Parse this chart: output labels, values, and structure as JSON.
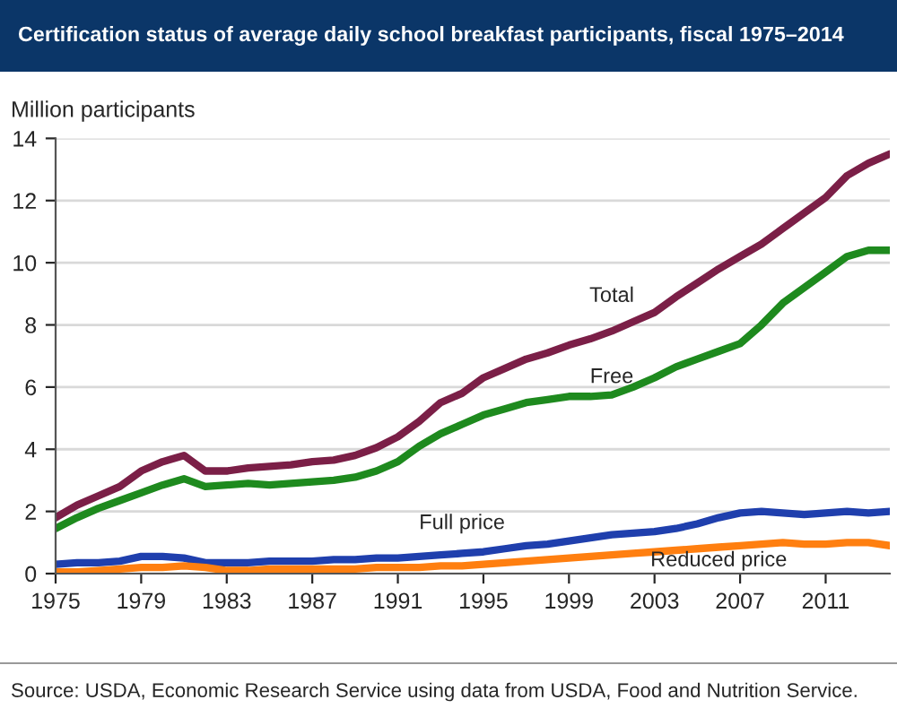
{
  "chart_data": {
    "type": "line",
    "title": "Certification status of average daily school breakfast participants, fiscal 1975–2014",
    "ylabel": "Million participants",
    "x": [
      1975,
      1976,
      1977,
      1978,
      1979,
      1980,
      1981,
      1982,
      1983,
      1984,
      1985,
      1986,
      1987,
      1988,
      1989,
      1990,
      1991,
      1992,
      1993,
      1994,
      1995,
      1996,
      1997,
      1998,
      1999,
      2000,
      2001,
      2002,
      2003,
      2004,
      2005,
      2006,
      2007,
      2008,
      2009,
      2010,
      2011,
      2012,
      2013,
      2014
    ],
    "series": [
      {
        "name": "Total",
        "color": "#7b1f47",
        "values": [
          1.8,
          2.2,
          2.5,
          2.8,
          3.3,
          3.6,
          3.8,
          3.3,
          3.3,
          3.4,
          3.45,
          3.5,
          3.6,
          3.65,
          3.8,
          4.05,
          4.4,
          4.9,
          5.5,
          5.8,
          6.3,
          6.6,
          6.9,
          7.1,
          7.35,
          7.55,
          7.8,
          8.1,
          8.4,
          8.9,
          9.35,
          9.8,
          10.2,
          10.6,
          11.1,
          11.6,
          12.1,
          12.8,
          13.2,
          13.5
        ]
      },
      {
        "name": "Free",
        "color": "#1e8a1e",
        "values": [
          1.45,
          1.8,
          2.1,
          2.35,
          2.6,
          2.85,
          3.05,
          2.8,
          2.85,
          2.9,
          2.85,
          2.9,
          2.95,
          3.0,
          3.1,
          3.3,
          3.6,
          4.1,
          4.5,
          4.8,
          5.1,
          5.3,
          5.5,
          5.6,
          5.7,
          5.7,
          5.75,
          6.0,
          6.3,
          6.65,
          6.9,
          7.15,
          7.4,
          8.0,
          8.7,
          9.2,
          9.7,
          10.2,
          10.4,
          10.4
        ]
      },
      {
        "name": "Full price",
        "color": "#1f3fad",
        "values": [
          0.3,
          0.35,
          0.35,
          0.4,
          0.55,
          0.55,
          0.5,
          0.35,
          0.35,
          0.35,
          0.4,
          0.4,
          0.4,
          0.45,
          0.45,
          0.5,
          0.5,
          0.55,
          0.6,
          0.65,
          0.7,
          0.8,
          0.9,
          0.95,
          1.05,
          1.15,
          1.25,
          1.3,
          1.35,
          1.45,
          1.6,
          1.8,
          1.95,
          2.0,
          1.95,
          1.9,
          1.95,
          2.0,
          1.95,
          2.0
        ]
      },
      {
        "name": "Reduced price",
        "color": "#ff7f10",
        "values": [
          0.05,
          0.05,
          0.1,
          0.15,
          0.2,
          0.2,
          0.25,
          0.2,
          0.1,
          0.1,
          0.15,
          0.15,
          0.15,
          0.15,
          0.15,
          0.2,
          0.2,
          0.2,
          0.25,
          0.25,
          0.3,
          0.35,
          0.4,
          0.45,
          0.5,
          0.55,
          0.6,
          0.65,
          0.7,
          0.75,
          0.8,
          0.85,
          0.9,
          0.95,
          1.0,
          0.95,
          0.95,
          1.0,
          1.0,
          0.9
        ]
      }
    ],
    "xlim": [
      1975,
      2014
    ],
    "xticks": [
      1975,
      1979,
      1983,
      1987,
      1991,
      1995,
      1999,
      2003,
      2007,
      2011
    ],
    "ylim": [
      0,
      14
    ],
    "yticks": [
      0,
      2,
      4,
      6,
      8,
      10,
      12,
      14
    ],
    "grid": "y",
    "legend": false,
    "marker": "none",
    "line_style": "solid",
    "annotations": [
      "Source: USDA, Economic Research Service using data from USDA, Food and Nutrition Service."
    ]
  }
}
